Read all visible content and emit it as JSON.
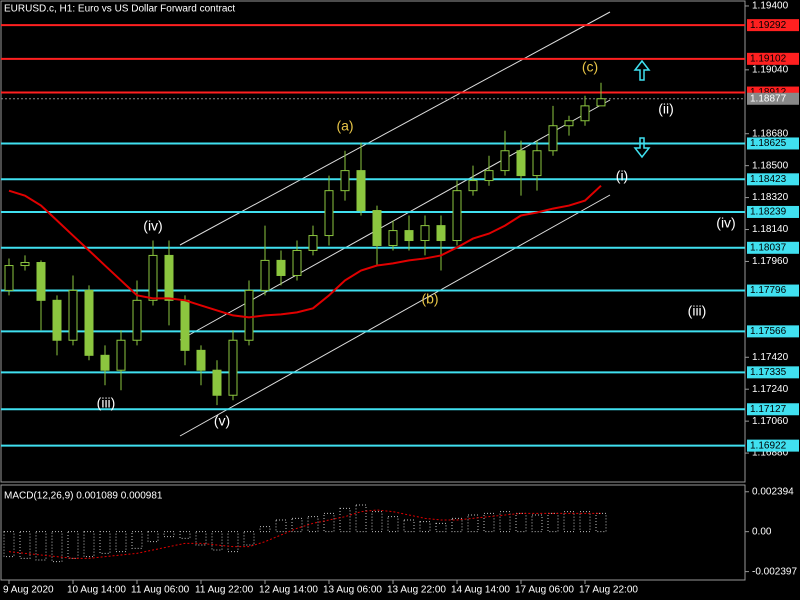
{
  "chart_data": [
    {
      "type": "candlestick",
      "title": "EURUSD.c, H1:  Euro vs US Dollar Forward contract",
      "categories": [
        "9 Aug 2020",
        null,
        null,
        null,
        "10 Aug 14:00",
        null,
        null,
        null,
        "11 Aug 06:00",
        null,
        null,
        null,
        "11 Aug 22:00",
        null,
        null,
        null,
        "12 Aug 14:00",
        null,
        null,
        null,
        "13 Aug 06:00",
        null,
        null,
        null,
        "13 Aug 22:00",
        null,
        null,
        null,
        "14 Aug 14:00",
        null,
        null,
        null,
        "17 Aug 06:00",
        null,
        null,
        null,
        "17 Aug 22:00",
        null
      ],
      "open": [
        1.17797,
        1.17937,
        1.17954,
        1.17741,
        1.17516,
        1.17797,
        1.17431,
        1.17347,
        1.17516,
        1.17741,
        1.17994,
        1.17741,
        1.17459,
        1.17347,
        1.17206,
        1.17516,
        1.17797,
        1.17966,
        1.17881,
        1.18022,
        1.18106,
        1.18359,
        1.18472,
        1.18247,
        1.1805,
        1.18134,
        1.18078,
        1.18162,
        1.18078,
        1.18359,
        1.18416,
        1.18472,
        1.18584,
        1.18444,
        1.18584,
        1.18725,
        1.18753,
        1.18837
      ],
      "high": [
        1.17977,
        1.17994,
        1.17966,
        1.17769,
        1.17881,
        1.17825,
        1.17487,
        1.17572,
        1.17853,
        1.18078,
        1.18078,
        1.17769,
        1.17487,
        1.17403,
        1.17572,
        1.17853,
        1.18162,
        1.18022,
        1.18078,
        1.18162,
        1.18444,
        1.18584,
        1.18629,
        1.18275,
        1.18191,
        1.18219,
        1.18219,
        1.18219,
        1.18416,
        1.185,
        1.18556,
        1.18697,
        1.18641,
        1.18641,
        1.18837,
        1.18781,
        1.18894,
        1.18967
      ],
      "low": [
        1.17769,
        1.17909,
        1.17572,
        1.17431,
        1.17487,
        1.17403,
        1.17262,
        1.17234,
        1.17487,
        1.17712,
        1.176,
        1.17375,
        1.17262,
        1.1715,
        1.17178,
        1.17487,
        1.17769,
        1.17825,
        1.17853,
        1.17994,
        1.1805,
        1.18303,
        1.18219,
        1.17937,
        1.18022,
        1.18022,
        1.17994,
        1.17909,
        1.1805,
        1.18331,
        1.18387,
        1.18444,
        1.18331,
        1.18359,
        1.18556,
        1.18669,
        1.18725,
        1.18837
      ],
      "close": [
        1.17937,
        1.17954,
        1.17741,
        1.17516,
        1.17797,
        1.17431,
        1.17347,
        1.17516,
        1.17741,
        1.17994,
        1.17741,
        1.17459,
        1.17347,
        1.17206,
        1.17516,
        1.17797,
        1.17966,
        1.17881,
        1.18022,
        1.18106,
        1.18359,
        1.18472,
        1.18247,
        1.1805,
        1.18134,
        1.18078,
        1.18162,
        1.18078,
        1.18359,
        1.18416,
        1.18472,
        1.18584,
        1.18444,
        1.18584,
        1.18725,
        1.18753,
        1.18837,
        1.18877
      ],
      "up_color": "#000000",
      "down_color": "#8cc63f",
      "candle_stroke": "#8cc63f",
      "ma": {
        "color": "#e00000",
        "values": [
          1.18359,
          1.18331,
          1.18275,
          1.18191,
          1.18106,
          1.18022,
          1.17937,
          1.17853,
          1.17769,
          1.17752,
          1.17752,
          1.17741,
          1.17712,
          1.17684,
          1.17656,
          1.17645,
          1.17656,
          1.17662,
          1.17673,
          1.17696,
          1.17769,
          1.17853,
          1.17909,
          1.17937,
          1.17949,
          1.17966,
          1.17977,
          1.17994,
          1.18039,
          1.18089,
          1.18117,
          1.18162,
          1.18219,
          1.18236,
          1.18258,
          1.18275,
          1.18303,
          1.18387
        ]
      },
      "ylim": [
        1.16717,
        1.19428
      ],
      "yticks": [
        {
          "value": 1.194,
          "label": "1.19400"
        },
        {
          "value": 1.1904,
          "label": "1.19040"
        },
        {
          "value": 1.1868,
          "label": "1.18680"
        },
        {
          "value": 1.185,
          "label": "1.18500"
        },
        {
          "value": 1.1832,
          "label": "1.18320"
        },
        {
          "value": 1.1814,
          "label": "1.18140"
        },
        {
          "value": 1.1796,
          "label": "1.17960"
        },
        {
          "value": 1.1742,
          "label": "1.17420"
        },
        {
          "value": 1.1724,
          "label": "1.17240"
        },
        {
          "value": 1.1706,
          "label": "1.17060"
        },
        {
          "value": 1.1688,
          "label": "1.16880"
        }
      ],
      "levels": [
        {
          "value": 1.19292,
          "color": "#ff2020"
        },
        {
          "value": 1.19102,
          "color": "#ff2020"
        },
        {
          "value": 1.18912,
          "color": "#ff2020"
        },
        {
          "value": 1.18625,
          "color": "#40e0f0"
        },
        {
          "value": 1.18423,
          "color": "#40e0f0"
        },
        {
          "value": 1.18239,
          "color": "#40e0f0"
        },
        {
          "value": 1.18037,
          "color": "#40e0f0"
        },
        {
          "value": 1.17796,
          "color": "#40e0f0"
        },
        {
          "value": 1.17566,
          "color": "#40e0f0"
        },
        {
          "value": 1.17335,
          "color": "#40e0f0"
        },
        {
          "value": 1.17127,
          "color": "#40e0f0"
        },
        {
          "value": 1.16922,
          "color": "#40e0f0"
        }
      ],
      "bid": 1.18877,
      "annotations": [
        "(c)",
        "(a)",
        "(ii)",
        "(i)",
        "(iv)",
        "(iv)",
        "(b)",
        "(iii)",
        "(iii)",
        "(v)"
      ]
    },
    {
      "type": "bar",
      "title": "MACD(12,26,9) 0.001089 0.000981",
      "values": [
        -0.0015,
        -0.0016,
        -0.0017,
        -0.0018,
        -0.0016,
        -0.0015,
        -0.0013,
        -0.0012,
        -0.001,
        -0.0006,
        -0.0003,
        -0.0004,
        -0.0008,
        -0.0011,
        -0.0012,
        -0.0008,
        0.0003,
        0.0007,
        0.0008,
        0.0009,
        0.0011,
        0.0014,
        0.0016,
        0.0012,
        0.0009,
        0.0007,
        0.0006,
        0.0005,
        0.0008,
        0.001,
        0.0011,
        0.0012,
        0.0011,
        0.001,
        0.0011,
        0.0012,
        0.0012,
        0.0011
      ],
      "signal": [
        -0.0012,
        -0.0013,
        -0.0014,
        -0.0015,
        -0.0016,
        -0.0016,
        -0.0015,
        -0.0014,
        -0.0013,
        -0.0011,
        -0.0009,
        -0.0007,
        -0.0007,
        -0.0008,
        -0.0009,
        -0.0009,
        -0.0006,
        -0.0002,
        0.0002,
        0.0005,
        0.0007,
        0.0009,
        0.0012,
        0.0013,
        0.0012,
        0.001,
        0.0008,
        0.0007,
        0.0007,
        0.0008,
        0.0009,
        0.001,
        0.0011,
        0.0011,
        0.0011,
        0.0011,
        0.0011,
        0.0011
      ],
      "color": "#c0c0c0",
      "signal_color": "#e00000",
      "ylim": [
        -0.0029,
        0.0028
      ],
      "yticks": [
        {
          "value": 0.002394,
          "label": "0.002394"
        },
        {
          "value": 0,
          "label": "0.00"
        },
        {
          "value": -0.002397,
          "label": "-0.002397"
        }
      ]
    }
  ]
}
